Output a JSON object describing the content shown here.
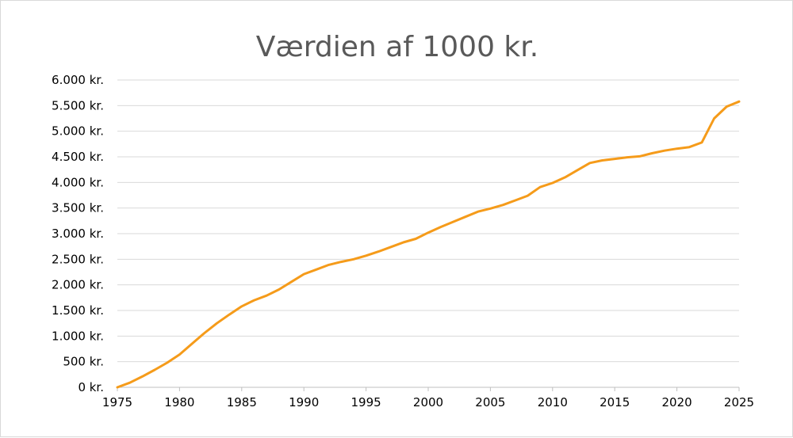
{
  "chart_data": {
    "type": "line",
    "title": "Værdien af 1000 kr.",
    "xlabel": "",
    "ylabel": "",
    "xlim": [
      1975,
      2025
    ],
    "ylim": [
      0,
      6000
    ],
    "x_ticks": [
      1975,
      1980,
      1985,
      1990,
      1995,
      2000,
      2005,
      2010,
      2015,
      2020,
      2025
    ],
    "x_tick_labels": [
      "1975",
      "1980",
      "1985",
      "1990",
      "1995",
      "2000",
      "2005",
      "2010",
      "2015",
      "2020",
      "2025"
    ],
    "y_ticks": [
      0,
      500,
      1000,
      1500,
      2000,
      2500,
      3000,
      3500,
      4000,
      4500,
      5000,
      5500,
      6000
    ],
    "y_tick_labels": [
      "0 kr.",
      "500 kr.",
      "1.000 kr.",
      "1.500 kr.",
      "2.000 kr.",
      "2.500 kr.",
      "3.000 kr.",
      "3.500 kr.",
      "4.000 kr.",
      "4.500 kr.",
      "5.000 kr.",
      "5.500 kr.",
      "6.000 kr."
    ],
    "grid": "horizontal",
    "legend": "none",
    "series": [
      {
        "color": "#F59B1A",
        "x": [
          1975,
          1976,
          1977,
          1978,
          1979,
          1980,
          1981,
          1982,
          1983,
          1984,
          1985,
          1986,
          1987,
          1988,
          1989,
          1990,
          1991,
          1992,
          1993,
          1994,
          1995,
          1996,
          1997,
          1998,
          1999,
          2000,
          2001,
          2002,
          2003,
          2004,
          2005,
          2006,
          2007,
          2008,
          2009,
          2010,
          2011,
          2012,
          2013,
          2014,
          2015,
          2016,
          2017,
          2018,
          2019,
          2020,
          2021,
          2022,
          2023,
          2024,
          2025
        ],
        "values": [
          0,
          90,
          210,
          340,
          480,
          640,
          850,
          1060,
          1250,
          1420,
          1580,
          1700,
          1790,
          1910,
          2060,
          2210,
          2300,
          2390,
          2450,
          2500,
          2570,
          2650,
          2740,
          2830,
          2900,
          3020,
          3130,
          3230,
          3330,
          3430,
          3490,
          3560,
          3650,
          3740,
          3910,
          3990,
          4100,
          4240,
          4380,
          4430,
          4460,
          4490,
          4510,
          4570,
          4620,
          4660,
          4690,
          4780,
          5250,
          5480,
          5580
        ]
      }
    ]
  }
}
